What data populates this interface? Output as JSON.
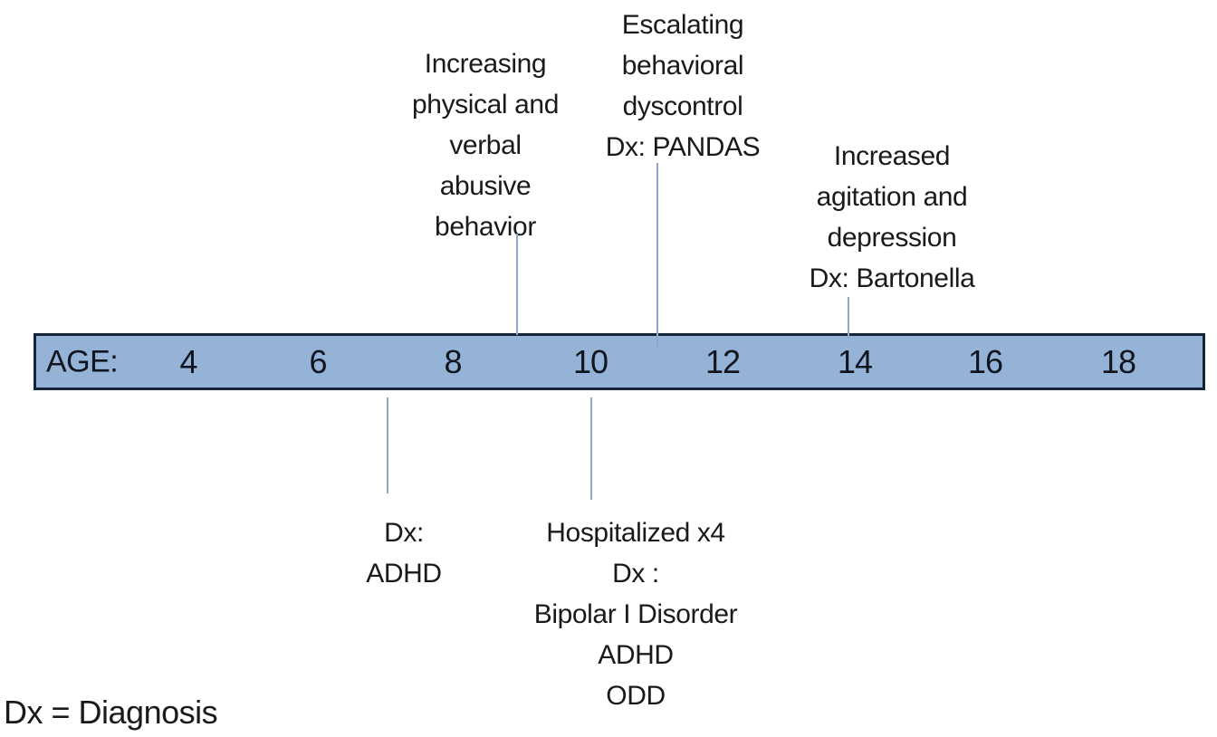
{
  "diagram": {
    "type": "timeline",
    "legend_note": "Dx = Diagnosis",
    "colors": {
      "bar_fill": "#95B3D7",
      "bar_border": "#17253B",
      "connector": "#8EA9CB",
      "text": "#1A1A1A"
    }
  },
  "timeline": {
    "age_label": "AGE:",
    "ticks": [
      "4",
      "6",
      "8",
      "10",
      "12",
      "14",
      "16",
      "18"
    ]
  },
  "events_above": [
    {
      "marker_age": 9,
      "lines": [
        "Increasing",
        "physical and",
        "verbal",
        "abusive",
        "behavior"
      ]
    },
    {
      "marker_age": 11,
      "lines": [
        "Escalating",
        "behavioral",
        "dyscontrol",
        "Dx: PANDAS"
      ]
    },
    {
      "marker_age": 14,
      "lines": [
        "Increased",
        "agitation and",
        "depression",
        "Dx: Bartonella"
      ]
    }
  ],
  "events_below": [
    {
      "marker_age": 7,
      "lines": [
        "Dx:",
        "ADHD"
      ]
    },
    {
      "marker_age": 10,
      "lines": [
        "Hospitalized x4",
        "Dx :",
        "Bipolar I Disorder",
        "ADHD",
        "ODD"
      ]
    }
  ]
}
